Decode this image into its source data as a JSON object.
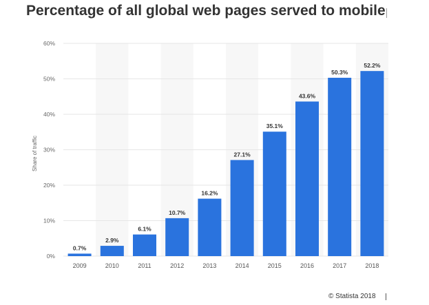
{
  "chart_data": {
    "type": "bar",
    "title": "Percentage of all global web pages served to mobile",
    "ylabel": "Share of traffic",
    "xlabel": "",
    "categories": [
      "2009",
      "2010",
      "2011",
      "2012",
      "2013",
      "2014",
      "2015",
      "2016",
      "2017",
      "2018"
    ],
    "values": [
      0.7,
      2.9,
      6.1,
      10.7,
      16.2,
      27.1,
      35.1,
      43.6,
      50.3,
      52.2
    ],
    "value_labels": [
      "0.7%",
      "2.9%",
      "6.1%",
      "10.7%",
      "16.2%",
      "27.1%",
      "35.1%",
      "43.6%",
      "50.3%",
      "52.2%"
    ],
    "ylim": [
      0,
      60
    ],
    "yticks": [
      0,
      10,
      20,
      30,
      40,
      50,
      60
    ],
    "ytick_labels": [
      "0%",
      "10%",
      "20%",
      "30%",
      "40%",
      "50%",
      "60%"
    ],
    "grid": true,
    "alternating_bands": true,
    "bar_color": "#2a73de",
    "band_color": "#f7f7f7"
  },
  "credit": "© Statista 2018"
}
